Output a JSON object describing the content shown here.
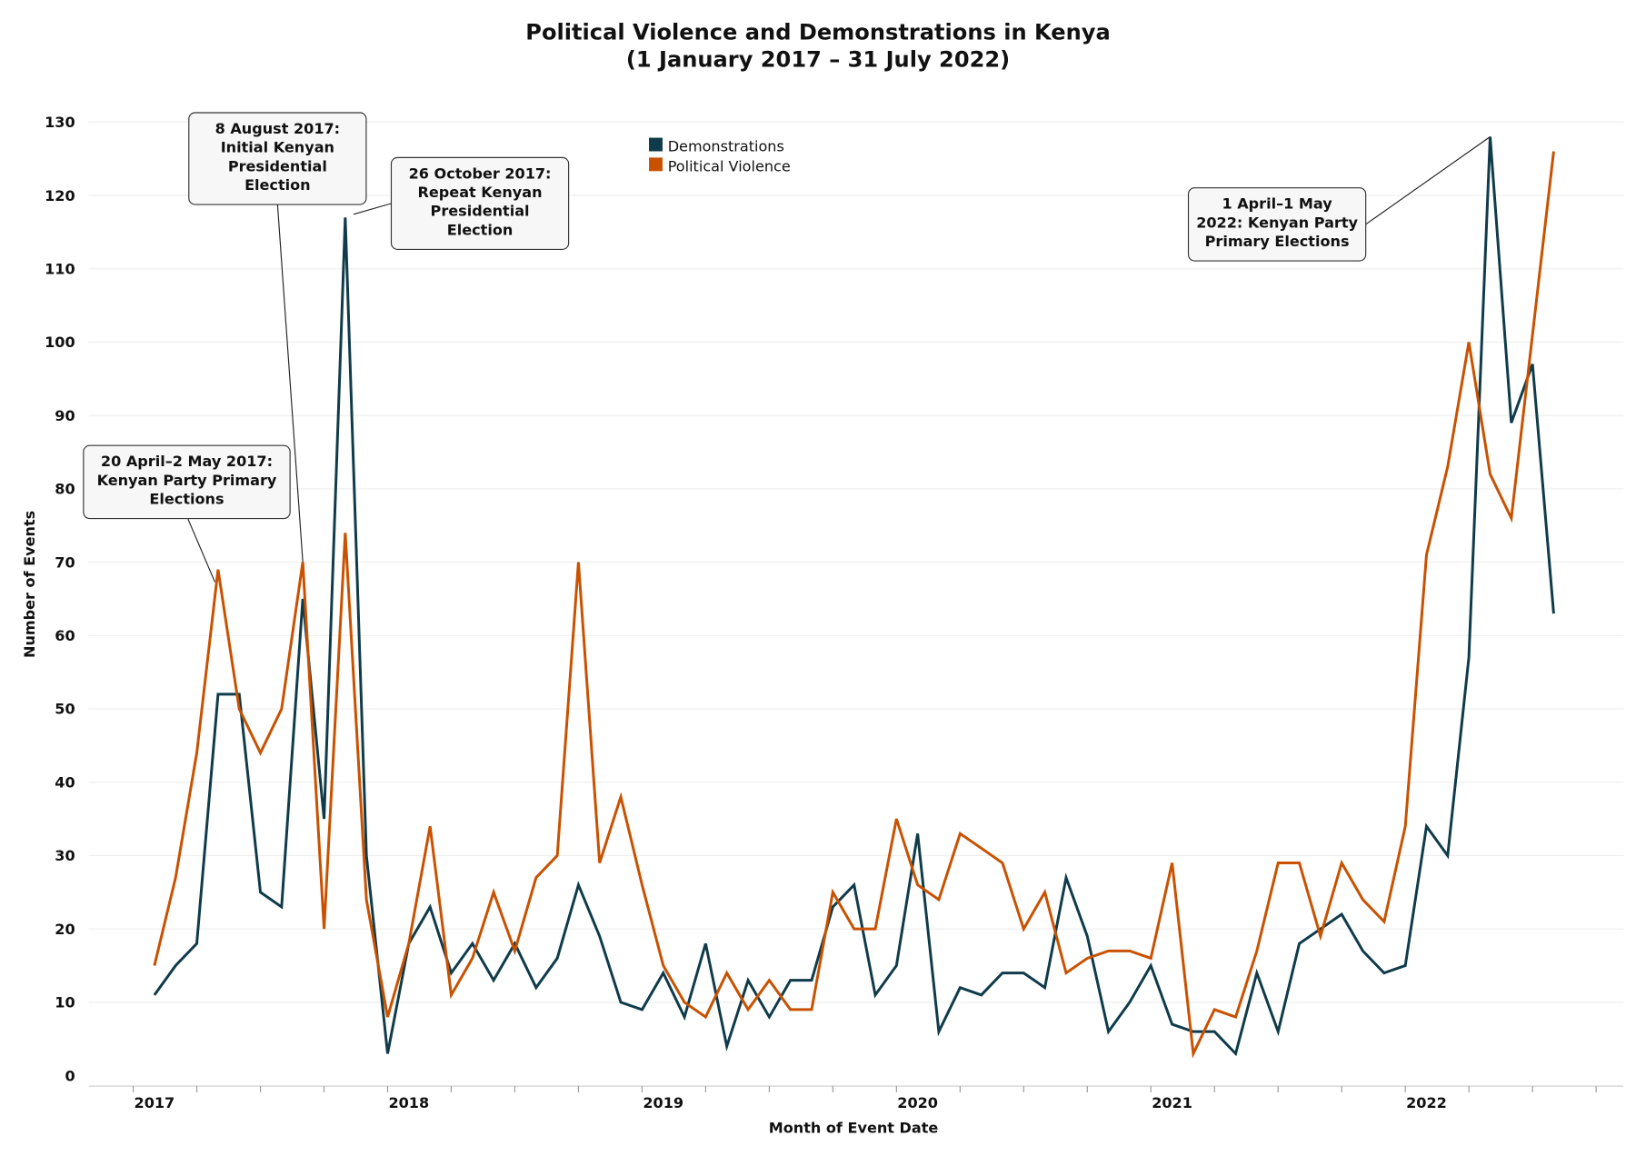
{
  "chart_data": {
    "type": "line",
    "title": [
      "Political Violence and Demonstrations in Kenya",
      "(1 January 2017 – 31 July 2022)"
    ],
    "xlabel": "Month of Event Date",
    "ylabel": "Number of Events",
    "x_start": "2017-01",
    "x_end": "2022-07",
    "x_ticks": [
      "2017",
      "2018",
      "2019",
      "2020",
      "2021",
      "2022"
    ],
    "ylim": [
      0,
      130
    ],
    "y_ticks": [
      0,
      10,
      20,
      30,
      40,
      50,
      60,
      70,
      80,
      90,
      100,
      110,
      120,
      130
    ],
    "grid": true,
    "legend_position": "top-center",
    "series": [
      {
        "name": "Demonstrations",
        "color": "#0f3b4a",
        "values": [
          11,
          15,
          18,
          52,
          52,
          25,
          23,
          65,
          35,
          117,
          30,
          3,
          18,
          23,
          14,
          18,
          13,
          18,
          12,
          16,
          26,
          19,
          10,
          9,
          14,
          8,
          18,
          4,
          13,
          8,
          13,
          13,
          23,
          26,
          11,
          15,
          33,
          6,
          12,
          11,
          14,
          14,
          12,
          27,
          19,
          6,
          10,
          15,
          7,
          6,
          6,
          3,
          14,
          6,
          18,
          20,
          22,
          17,
          14,
          15,
          34,
          30,
          57,
          128,
          89,
          97,
          63
        ]
      },
      {
        "name": "Political Violence",
        "color": "#c95100",
        "values": [
          15,
          27,
          44,
          69,
          50,
          44,
          50,
          70,
          20,
          74,
          24,
          8,
          18,
          34,
          11,
          16,
          25,
          17,
          27,
          30,
          70,
          29,
          38,
          26,
          15,
          10,
          8,
          14,
          9,
          13,
          9,
          9,
          25,
          20,
          20,
          35,
          26,
          24,
          33,
          31,
          29,
          20,
          25,
          14,
          16,
          17,
          17,
          16,
          29,
          3,
          9,
          8,
          17,
          29,
          29,
          19,
          29,
          24,
          21,
          34,
          71,
          83,
          100,
          82,
          76,
          101,
          126
        ]
      }
    ],
    "annotations": [
      {
        "lines": [
          "20 April–2 May 2017:",
          "Kenyan Party Primary",
          "Elections"
        ]
      },
      {
        "lines": [
          "8 August 2017:",
          "Initial Kenyan",
          "Presidential",
          "Election"
        ]
      },
      {
        "lines": [
          "26 October 2017:",
          "Repeat Kenyan",
          "Presidential",
          "Election"
        ]
      },
      {
        "lines": [
          "1 April–1 May",
          "2022: Kenyan Party",
          "Primary Elections"
        ]
      }
    ]
  }
}
